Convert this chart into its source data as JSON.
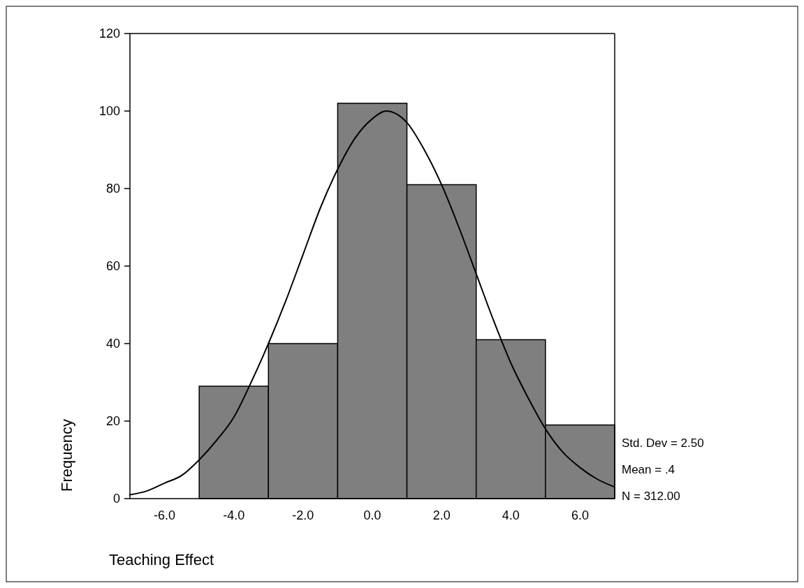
{
  "chart_data": {
    "type": "histogram",
    "xlabel": "Teaching Effect",
    "ylabel": "Frequency",
    "bins": [
      -5,
      -3,
      -1,
      1,
      3,
      5,
      7
    ],
    "values": [
      29,
      40,
      102,
      81,
      41,
      19
    ],
    "color": "#7f7f7f",
    "series": [
      {
        "type": "line",
        "color": "#000000",
        "x": [
          -7,
          -6.5,
          -6,
          -5.5,
          -5,
          -4.5,
          -4,
          -3.5,
          -3,
          -2.5,
          -2,
          -1.5,
          -1,
          -0.5,
          0,
          0.4,
          1,
          1.5,
          2,
          2.5,
          3,
          3.5,
          4,
          4.5,
          5,
          5.5,
          6,
          6.5,
          7
        ],
        "values": [
          1,
          2,
          4,
          6,
          10,
          15,
          21,
          30,
          40,
          51,
          63,
          75,
          85,
          93,
          98,
          100,
          97,
          90,
          81,
          70,
          58,
          46,
          35,
          26,
          18,
          12,
          8,
          5,
          3
        ]
      }
    ],
    "xlim": [
      -7,
      7
    ],
    "xticks": [
      {
        "value": -6,
        "label": "-6.0"
      },
      {
        "value": -4,
        "label": "-4.0"
      },
      {
        "value": -2,
        "label": "-2.0"
      },
      {
        "value": 0,
        "label": "0.0"
      },
      {
        "value": 2,
        "label": "2.0"
      },
      {
        "value": 4,
        "label": "4.0"
      },
      {
        "value": 6,
        "label": "6.0"
      }
    ],
    "ylim": [
      0,
      120
    ],
    "yticks": [
      0,
      20,
      40,
      60,
      80,
      100,
      120
    ],
    "grid": false,
    "annotations": [
      "Std. Dev = 2.50",
      "Mean = .4",
      "N = 312.00"
    ]
  }
}
